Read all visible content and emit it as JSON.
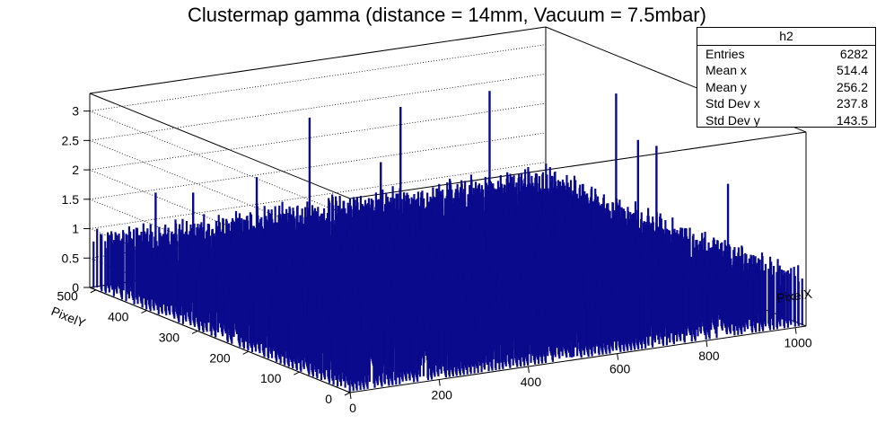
{
  "chart_data": {
    "type": "lego3d-histogram",
    "title": "Clustermap gamma (distance = 14mm, Vacuum = 7.5mbar)",
    "xlabel": "PixelX",
    "ylabel": "PixelY",
    "xlim": [
      0,
      1024
    ],
    "ylim": [
      0,
      512
    ],
    "zlim": [
      0,
      3.3
    ],
    "xticks": [
      0,
      200,
      400,
      600,
      800,
      1000
    ],
    "yticks": [
      0,
      100,
      200,
      300,
      400,
      500
    ],
    "zticks": [
      0,
      0.5,
      1,
      1.5,
      2,
      2.5,
      3
    ],
    "series_color": "#0a0a8c",
    "typical_bin_height": 1,
    "peaks": [
      {
        "x": 510,
        "y": 10,
        "z": 2.0
      },
      {
        "x": 100,
        "y": 470,
        "z": 1.65
      },
      {
        "x": 150,
        "y": 440,
        "z": 1.7
      },
      {
        "x": 270,
        "y": 420,
        "z": 1.9
      },
      {
        "x": 480,
        "y": 500,
        "z": 2.4
      },
      {
        "x": 650,
        "y": 470,
        "z": 2.5
      },
      {
        "x": 850,
        "y": 470,
        "z": 2.55
      },
      {
        "x": 940,
        "y": 300,
        "z": 3.0
      },
      {
        "x": 955,
        "y": 270,
        "z": 2.3
      },
      {
        "x": 985,
        "y": 260,
        "z": 2.2
      },
      {
        "x": 1020,
        "y": 150,
        "z": 1.9
      },
      {
        "x": 560,
        "y": 430,
        "z": 1.8
      }
    ],
    "stats": {
      "name": "h2",
      "rows": [
        {
          "label": "Entries",
          "value": "6282"
        },
        {
          "label": "Mean x",
          "value": "514.4"
        },
        {
          "label": "Mean y",
          "value": "256.2"
        },
        {
          "label": "Std Dev x",
          "value": "237.8"
        },
        {
          "label": "Std Dev y",
          "value": "143.5"
        }
      ]
    }
  }
}
